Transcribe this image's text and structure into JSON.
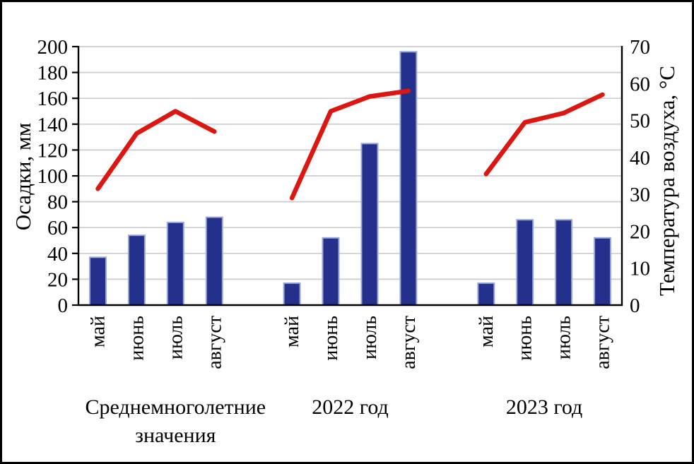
{
  "chart_data": {
    "type": "bar+line",
    "title": "",
    "left_axis": {
      "label": "Осадки, мм",
      "min": 0,
      "max": 200,
      "step": 20
    },
    "right_axis": {
      "label": "Температура воздуха, °C",
      "min": 0,
      "max": 70,
      "step": 10
    },
    "categories": [
      "май",
      "июнь",
      "июль",
      "август"
    ],
    "groups": [
      {
        "label": "Среднемноголетние значения",
        "label_lines": [
          "Среднемноголетние",
          "значения"
        ],
        "precipitation_mm": [
          37,
          54,
          64,
          68
        ],
        "temperature_c": [
          31.5,
          46.5,
          52.5,
          47
        ]
      },
      {
        "label": "2022 год",
        "label_lines": [
          "2022 год"
        ],
        "precipitation_mm": [
          17,
          52,
          125,
          196
        ],
        "temperature_c": [
          29,
          52.5,
          56.5,
          58
        ]
      },
      {
        "label": "2023 год",
        "label_lines": [
          "2023 год"
        ],
        "precipitation_mm": [
          17,
          66,
          66,
          52
        ],
        "temperature_c": [
          35.5,
          49.5,
          52,
          57
        ]
      }
    ],
    "series_legend": {
      "bars": "Осадки, мм",
      "line": "Температура воздуха, °C",
      "legend_shown": false
    },
    "layout_hints": {
      "grid": "horizontal",
      "bar_color_role": "precipitation",
      "line_color_role": "temperature"
    },
    "colors": {
      "bar_fill": "#23318c",
      "bar_border": "#9aa8d8",
      "line": "#dc1712",
      "grid": "#ccccd6",
      "axis": "#000000",
      "background": "#ffffff"
    }
  }
}
